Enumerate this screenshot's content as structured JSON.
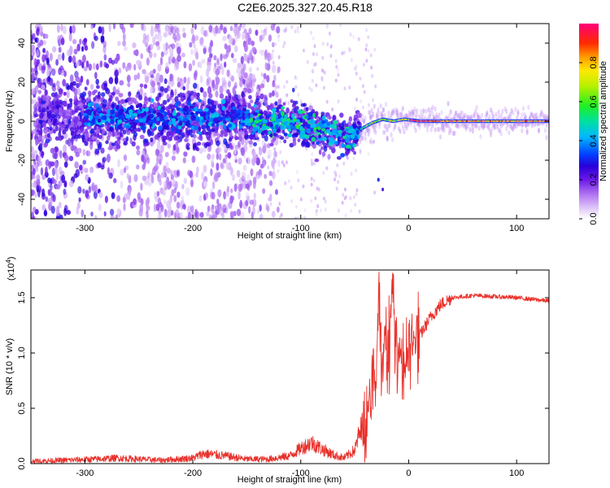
{
  "title": "C2E6.2025.327.20.45.R18",
  "chart_data": [
    {
      "type": "heatmap",
      "xlabel": "Height of straight line (km)",
      "ylabel": "Frequency (Hz)",
      "xlim": [
        -350,
        130
      ],
      "ylim": [
        -50,
        50
      ],
      "x_ticks": [
        -300,
        -200,
        -100,
        0,
        100
      ],
      "x_tick_labels": [
        "-300",
        "-200",
        "-100",
        "0",
        "100"
      ],
      "y_ticks": [
        -40,
        -20,
        0,
        20,
        40
      ],
      "y_tick_labels": [
        "-40",
        "-20",
        "0",
        "20",
        "40"
      ],
      "colorbar": {
        "label": "Normalized spectral amplitude",
        "range": [
          0,
          1
        ],
        "ticks": [
          0.0,
          0.2,
          0.4,
          0.6,
          0.8
        ],
        "tick_labels": [
          "0.0",
          "0.2",
          "0.4",
          "0.6",
          "0.8"
        ],
        "colors": [
          "#ffffff",
          "#dcc8f5",
          "#9a3cf0",
          "#2a00d8",
          "#0050ff",
          "#00d2ff",
          "#00e65a",
          "#b4f000",
          "#ffe600",
          "#ff8a00",
          "#ff0000",
          "#ff007a"
        ]
      },
      "band_center_hz": [
        {
          "x": -350,
          "y": 2
        },
        {
          "x": -300,
          "y": 3
        },
        {
          "x": -250,
          "y": 2
        },
        {
          "x": -200,
          "y": 2
        },
        {
          "x": -150,
          "y": 1
        },
        {
          "x": -120,
          "y": 0
        },
        {
          "x": -100,
          "y": -2
        },
        {
          "x": -80,
          "y": -5
        },
        {
          "x": -65,
          "y": -7
        },
        {
          "x": -55,
          "y": -9
        },
        {
          "x": -45,
          "y": -4
        },
        {
          "x": -35,
          "y": -1
        },
        {
          "x": -25,
          "y": 1
        },
        {
          "x": -15,
          "y": 0
        },
        {
          "x": -5,
          "y": 1
        },
        {
          "x": 10,
          "y": 0
        },
        {
          "x": 60,
          "y": 0
        },
        {
          "x": 130,
          "y": 0
        }
      ]
    },
    {
      "type": "line",
      "xlabel": "Height of straight line (km)",
      "ylabel": "SNR (10 * v/v)",
      "y_multiplier_label": "(x10^4)",
      "xlim": [
        -350,
        130
      ],
      "ylim": [
        0,
        1.75
      ],
      "x_ticks": [
        -300,
        -200,
        -100,
        0,
        100
      ],
      "x_tick_labels": [
        "-300",
        "-200",
        "-100",
        "0",
        "100"
      ],
      "y_ticks": [
        0.0,
        0.5,
        1.0,
        1.5
      ],
      "y_tick_labels": [
        "0.0",
        "0.5",
        "1.0",
        "1.5"
      ],
      "color": "#e8302a",
      "series": [
        {
          "x": [
            -350,
            -320,
            -290,
            -270,
            -250,
            -230,
            -200,
            -190,
            -170,
            -150,
            -130,
            -110,
            -100,
            -90,
            -80,
            -70,
            -60,
            -50,
            -45,
            -40,
            -35,
            -30,
            -28,
            -25,
            -22,
            -18,
            -15,
            -12,
            -8,
            -5,
            0,
            5,
            10,
            20,
            30,
            40,
            60,
            80,
            100,
            120,
            130
          ],
          "y": [
            0.02,
            0.03,
            0.04,
            0.05,
            0.04,
            0.03,
            0.05,
            0.09,
            0.07,
            0.04,
            0.04,
            0.07,
            0.14,
            0.19,
            0.13,
            0.08,
            0.05,
            0.12,
            0.3,
            0.42,
            0.62,
            0.72,
            1.58,
            0.65,
            1.22,
            0.95,
            1.7,
            0.9,
            1.05,
            0.85,
            0.98,
            1.12,
            1.15,
            1.32,
            1.44,
            1.5,
            1.52,
            1.51,
            1.5,
            1.48,
            1.47
          ]
        }
      ]
    }
  ]
}
